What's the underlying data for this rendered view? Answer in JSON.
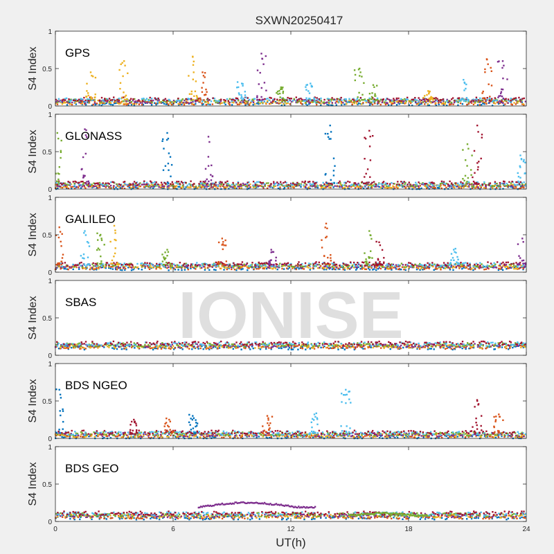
{
  "figure": {
    "title": "SXWN20250417",
    "watermark": "IONISE",
    "xlabel": "UT(h)",
    "xticks": [
      "0",
      "6",
      "12",
      "18",
      "24"
    ],
    "ylabel": "S4 Index",
    "yticks": [
      "0",
      "0.5",
      "1"
    ]
  },
  "colors": [
    "#0072BD",
    "#D95319",
    "#EDB120",
    "#7E2F8E",
    "#77AC30",
    "#4DBEEE",
    "#A2142F"
  ],
  "chart_data": [
    {
      "type": "scatter",
      "label": "GPS",
      "xlim": [
        0,
        24
      ],
      "ylim": [
        0,
        1
      ],
      "baseline": 0.06,
      "spikes": [
        {
          "x": 1.8,
          "y": 0.45,
          "c": 2
        },
        {
          "x": 3.5,
          "y": 0.6,
          "c": 2
        },
        {
          "x": 7.0,
          "y": 0.66,
          "c": 2
        },
        {
          "x": 7.5,
          "y": 0.45,
          "c": 1
        },
        {
          "x": 9.5,
          "y": 0.3,
          "c": 5
        },
        {
          "x": 10.5,
          "y": 0.7,
          "c": 3
        },
        {
          "x": 11.5,
          "y": 0.25,
          "c": 4
        },
        {
          "x": 13.0,
          "y": 0.3,
          "c": 5
        },
        {
          "x": 15.5,
          "y": 0.5,
          "c": 4
        },
        {
          "x": 16.2,
          "y": 0.28,
          "c": 4
        },
        {
          "x": 19.0,
          "y": 0.2,
          "c": 2
        },
        {
          "x": 20.8,
          "y": 0.35,
          "c": 5
        },
        {
          "x": 22.0,
          "y": 0.62,
          "c": 1
        },
        {
          "x": 22.8,
          "y": 0.6,
          "c": 3
        }
      ]
    },
    {
      "type": "scatter",
      "label": "GLONASS",
      "xlim": [
        0,
        24
      ],
      "ylim": [
        0,
        1
      ],
      "baseline": 0.05,
      "spikes": [
        {
          "x": 0.1,
          "y": 0.75,
          "c": 4
        },
        {
          "x": 1.5,
          "y": 0.8,
          "c": 3
        },
        {
          "x": 5.7,
          "y": 0.75,
          "c": 0
        },
        {
          "x": 7.8,
          "y": 0.7,
          "c": 3
        },
        {
          "x": 14.0,
          "y": 0.85,
          "c": 0
        },
        {
          "x": 16.0,
          "y": 0.78,
          "c": 6
        },
        {
          "x": 21.5,
          "y": 0.85,
          "c": 6
        },
        {
          "x": 21.0,
          "y": 0.6,
          "c": 4
        },
        {
          "x": 23.7,
          "y": 0.45,
          "c": 5
        }
      ]
    },
    {
      "type": "scatter",
      "label": "GALILEO",
      "xlim": [
        0,
        24
      ],
      "ylim": [
        0,
        1
      ],
      "baseline": 0.08,
      "spikes": [
        {
          "x": 0.2,
          "y": 0.6,
          "c": 1
        },
        {
          "x": 1.5,
          "y": 0.55,
          "c": 5
        },
        {
          "x": 2.3,
          "y": 0.5,
          "c": 4
        },
        {
          "x": 3.0,
          "y": 0.62,
          "c": 2
        },
        {
          "x": 5.7,
          "y": 0.3,
          "c": 4
        },
        {
          "x": 8.5,
          "y": 0.45,
          "c": 1
        },
        {
          "x": 11.0,
          "y": 0.3,
          "c": 3
        },
        {
          "x": 13.8,
          "y": 0.65,
          "c": 1
        },
        {
          "x": 16.0,
          "y": 0.55,
          "c": 4
        },
        {
          "x": 16.5,
          "y": 0.4,
          "c": 6
        },
        {
          "x": 20.3,
          "y": 0.3,
          "c": 5
        },
        {
          "x": 23.8,
          "y": 0.45,
          "c": 3
        }
      ]
    },
    {
      "type": "scatter",
      "label": "SBAS",
      "xlim": [
        0,
        24
      ],
      "ylim": [
        0,
        1
      ],
      "baseline": 0.13,
      "spikes": []
    },
    {
      "type": "scatter",
      "label": "BDS NGEO",
      "xlim": [
        0,
        24
      ],
      "ylim": [
        0,
        1
      ],
      "baseline": 0.05,
      "spikes": [
        {
          "x": 0.2,
          "y": 0.65,
          "c": 0
        },
        {
          "x": 4.0,
          "y": 0.25,
          "c": 6
        },
        {
          "x": 5.8,
          "y": 0.25,
          "c": 1
        },
        {
          "x": 7.0,
          "y": 0.3,
          "c": 0
        },
        {
          "x": 10.8,
          "y": 0.3,
          "c": 1
        },
        {
          "x": 13.2,
          "y": 0.32,
          "c": 5
        },
        {
          "x": 14.8,
          "y": 0.65,
          "c": 5
        },
        {
          "x": 21.5,
          "y": 0.5,
          "c": 6
        },
        {
          "x": 22.6,
          "y": 0.32,
          "c": 1
        }
      ]
    },
    {
      "type": "scatter",
      "label": "BDS GEO",
      "xlim": [
        0,
        24
      ],
      "ylim": [
        0,
        1
      ],
      "baseline": 0.08,
      "spikes": [],
      "arcs": [
        {
          "x0": 7.3,
          "x1": 13.3,
          "y0": 0.19,
          "ymax": 0.25,
          "c": 3
        },
        {
          "x0": 15.0,
          "x1": 19.0,
          "y0": 0.08,
          "ymax": 0.11,
          "c": 4
        }
      ]
    }
  ]
}
